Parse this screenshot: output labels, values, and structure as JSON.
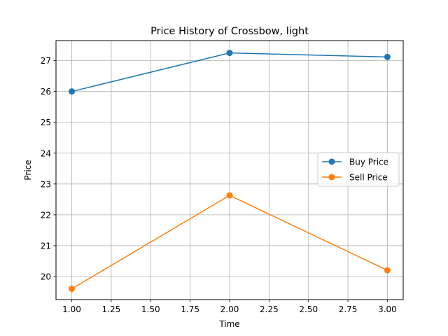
{
  "chart_data": {
    "type": "line",
    "title": "Price History of Crossbow, light",
    "xlabel": "Time",
    "ylabel": "Price",
    "x": [
      1.0,
      2.0,
      3.0
    ],
    "xlim": [
      0.9,
      3.1
    ],
    "ylim": [
      19.25,
      27.65
    ],
    "xticks": [
      1.0,
      1.25,
      1.5,
      1.75,
      2.0,
      2.25,
      2.5,
      2.75,
      3.0
    ],
    "xtick_labels": [
      "1.00",
      "1.25",
      "1.50",
      "1.75",
      "2.00",
      "2.25",
      "2.50",
      "2.75",
      "3.00"
    ],
    "yticks": [
      20,
      21,
      22,
      23,
      24,
      25,
      26,
      27
    ],
    "ytick_labels": [
      "20",
      "21",
      "22",
      "23",
      "24",
      "25",
      "26",
      "27"
    ],
    "grid": true,
    "legend_position": "center-right",
    "series": [
      {
        "name": "Buy Price",
        "color": "#1f77b4",
        "marker": "circle",
        "values": [
          26.0,
          27.25,
          27.12
        ]
      },
      {
        "name": "Sell Price",
        "color": "#ff7f0e",
        "marker": "circle",
        "values": [
          19.6,
          22.63,
          20.2
        ]
      }
    ]
  }
}
